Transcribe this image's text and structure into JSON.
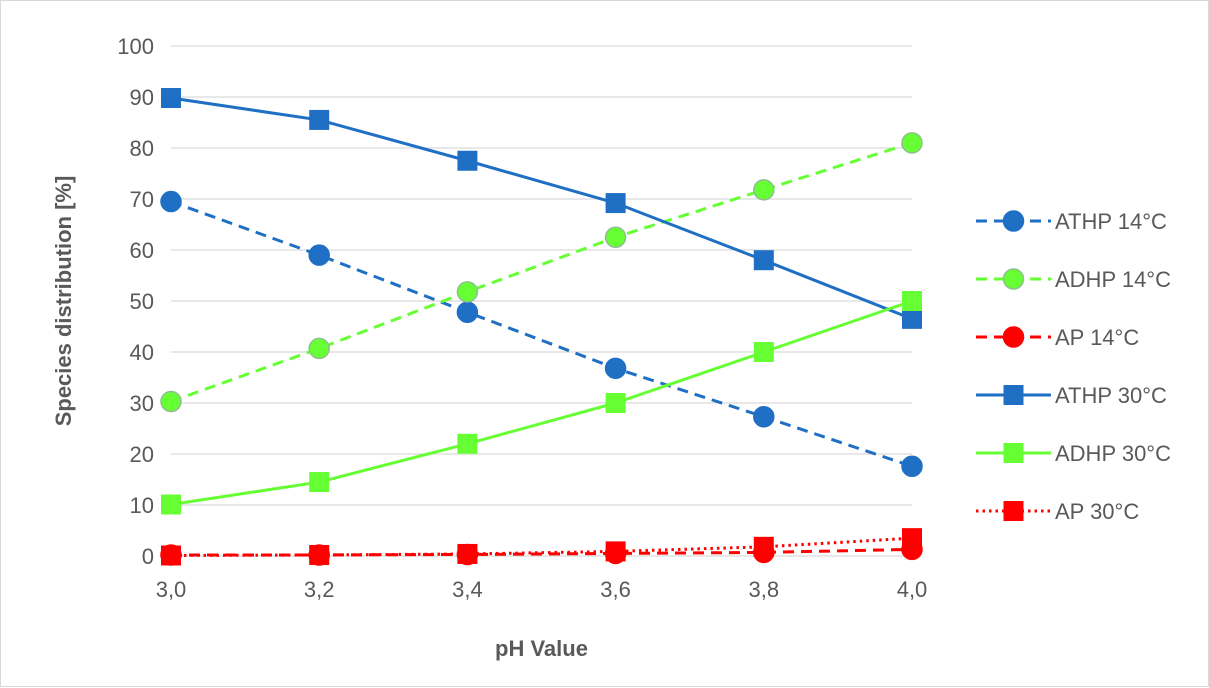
{
  "chart_data": {
    "type": "line",
    "title": "",
    "xlabel": "pH Value",
    "ylabel": "Species distribution [%]",
    "x": [
      3.0,
      3.2,
      3.4,
      3.6,
      3.8,
      4.0
    ],
    "x_tick_labels": [
      "3,0",
      "3,2",
      "3,4",
      "3,6",
      "3,8",
      "4,0"
    ],
    "xlim": [
      3.0,
      4.0
    ],
    "ylim": [
      0,
      100
    ],
    "y_ticks": [
      0,
      10,
      20,
      30,
      40,
      50,
      60,
      70,
      80,
      90,
      100
    ],
    "grid": "horizontal",
    "legend_position": "right",
    "series": [
      {
        "name": "ATHP 14°C",
        "values": [
          69.5,
          59,
          47.8,
          36.8,
          27.3,
          17.6
        ],
        "color": "#1f6fc4",
        "dash": "dashed",
        "marker": "circle"
      },
      {
        "name": "ADHP 14°C",
        "values": [
          30.3,
          40.7,
          51.8,
          62.5,
          71.8,
          81
        ],
        "color": "#66ff33",
        "dash": "dashed",
        "marker": "circle"
      },
      {
        "name": "AP 14°C",
        "values": [
          0.2,
          0.2,
          0.3,
          0.5,
          0.7,
          1.3
        ],
        "color": "#ff0000",
        "dash": "dashed",
        "marker": "circle"
      },
      {
        "name": "ATHP 30°C",
        "values": [
          89.8,
          85.5,
          77.5,
          69.2,
          58,
          46.5
        ],
        "color": "#1f6fc4",
        "dash": "solid",
        "marker": "square"
      },
      {
        "name": "ADHP 30°C",
        "values": [
          10.1,
          14.5,
          22,
          30,
          40,
          50
        ],
        "color": "#66ff33",
        "dash": "solid",
        "marker": "square"
      },
      {
        "name": "AP 30°C",
        "values": [
          0.1,
          0.2,
          0.4,
          0.9,
          1.8,
          3.5
        ],
        "color": "#ff0000",
        "dash": "dotted",
        "marker": "square"
      }
    ]
  }
}
